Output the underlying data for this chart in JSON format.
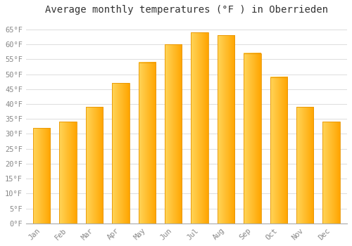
{
  "months": [
    "Jan",
    "Feb",
    "Mar",
    "Apr",
    "May",
    "Jun",
    "Jul",
    "Aug",
    "Sep",
    "Oct",
    "Nov",
    "Dec"
  ],
  "temperatures": [
    32,
    34,
    39,
    47,
    54,
    60,
    64,
    63,
    57,
    49,
    39,
    34
  ],
  "bar_color_left": "#FFD55A",
  "bar_color_right": "#FFA500",
  "bar_edge_color": "#E89400",
  "title": "Average monthly temperatures (°F ) in Oberrieden",
  "ylim": [
    0,
    68
  ],
  "yticks": [
    0,
    5,
    10,
    15,
    20,
    25,
    30,
    35,
    40,
    45,
    50,
    55,
    60,
    65
  ],
  "ytick_labels": [
    "0°F",
    "5°F",
    "10°F",
    "15°F",
    "20°F",
    "25°F",
    "30°F",
    "35°F",
    "40°F",
    "45°F",
    "50°F",
    "55°F",
    "60°F",
    "65°F"
  ],
  "background_color": "#ffffff",
  "grid_color": "#e0e0e0",
  "title_fontsize": 10,
  "tick_fontsize": 7.5,
  "font_family": "monospace",
  "bar_width": 0.65
}
